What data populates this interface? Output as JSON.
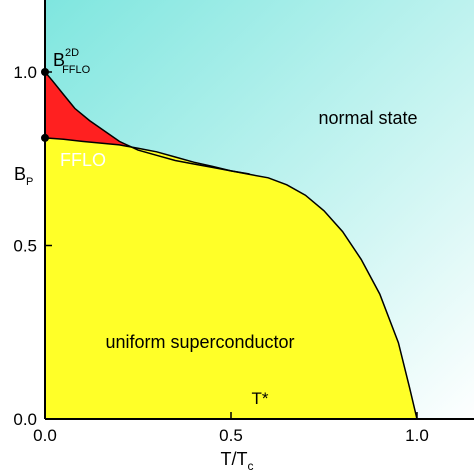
{
  "chart_data": {
    "type": "area",
    "title": "",
    "xlabel": "T/T",
    "xlabel_sub": "c",
    "ylabel": "",
    "xlim": [
      0,
      1.05
    ],
    "ylim": [
      0,
      1.17
    ],
    "x_ticks": [
      {
        "value": 0,
        "label": "0.0"
      },
      {
        "value": 0.5,
        "label": "0.5"
      },
      {
        "value": 1.0,
        "label": "1.0"
      }
    ],
    "y_ticks": [
      {
        "value": 0,
        "label": "0.0"
      },
      {
        "value": 0.5,
        "label": "0.5"
      },
      {
        "value": 1.0,
        "label": "1.0"
      }
    ],
    "colors": {
      "normal_light": "#ffffff",
      "normal_dark": "#7fe6df",
      "fflo": "#ff2020",
      "uniform": "#ffff28",
      "line": "#000000"
    },
    "regions": [
      {
        "name": "normal state",
        "label": "normal state"
      },
      {
        "name": "FFLO",
        "label": "FFLO"
      },
      {
        "name": "uniform superconductor",
        "label": "uniform superconductor"
      }
    ],
    "fflo_boundary": {
      "x": [
        0,
        0.02,
        0.05,
        0.08,
        0.12,
        0.16,
        0.2,
        0.25,
        0.3,
        0.35,
        0.4,
        0.45,
        0.5,
        0.55
      ],
      "y": [
        1.0,
        0.975,
        0.935,
        0.895,
        0.86,
        0.83,
        0.8,
        0.775,
        0.76,
        0.745,
        0.735,
        0.725,
        0.715,
        0.706
      ]
    },
    "uniform_boundary": {
      "x": [
        0,
        0.05,
        0.1,
        0.15,
        0.2,
        0.25,
        0.3,
        0.35,
        0.4,
        0.45,
        0.5,
        0.55,
        0.6,
        0.65,
        0.7,
        0.75,
        0.8,
        0.85,
        0.9,
        0.95,
        0.98,
        1.0
      ],
      "y": [
        0.81,
        0.806,
        0.8,
        0.795,
        0.79,
        0.78,
        0.77,
        0.755,
        0.74,
        0.728,
        0.715,
        0.705,
        0.695,
        0.675,
        0.645,
        0.6,
        0.54,
        0.46,
        0.36,
        0.22,
        0.09,
        0.0
      ]
    },
    "points": [
      {
        "name": "B_FFLO_2D",
        "x": 0,
        "y": 1.0,
        "label": "B",
        "sup": "2D",
        "sub": "FFLO"
      },
      {
        "name": "B_P",
        "x": 0,
        "y": 0.81,
        "label": "B",
        "sub": "P"
      }
    ],
    "annotations": [
      {
        "name": "t-star",
        "label": "T*",
        "x": 0.58,
        "y": 0.05
      }
    ]
  }
}
